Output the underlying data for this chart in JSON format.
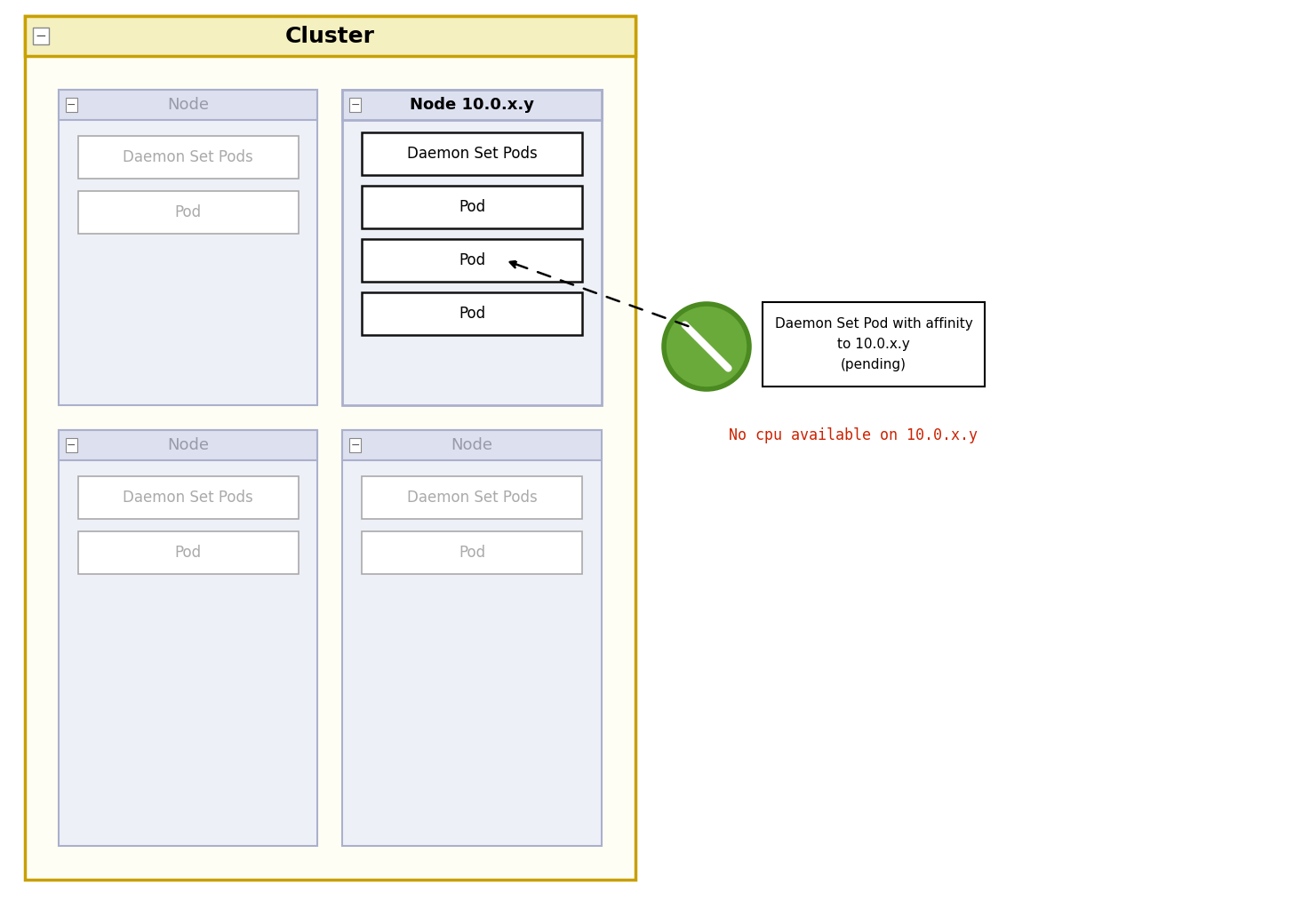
{
  "fig_width": 14.74,
  "fig_height": 10.14,
  "bg_color": "#ffffff",
  "cluster_bg": "#fefef5",
  "cluster_border": "#c8a000",
  "cluster_header_bg": "#f5f0c0",
  "cluster_title": "Cluster",
  "node_bg": "#eef0f8",
  "node_header_bg": "#dde0ef",
  "node_border": "#aab0cc",
  "node_title_color": "#999aaa",
  "node_10xy_title_color": "#000000",
  "pod_bg": "#ffffff",
  "pod_border_normal": "#aaaaaa",
  "pod_border_10xy": "#111111",
  "pod_text_normal": "#aaaaaa",
  "pod_text_10xy": "#000000",
  "no_cpu_text": "No cpu available on 10.0.x.y",
  "no_cpu_color": "#cc2200",
  "arrow_label": "Daemon Set Pod with affinity\nto 10.0.x.y\n(pending)",
  "block_sign_fill": "#6aaa3a",
  "block_sign_ring": "#4a8a20"
}
